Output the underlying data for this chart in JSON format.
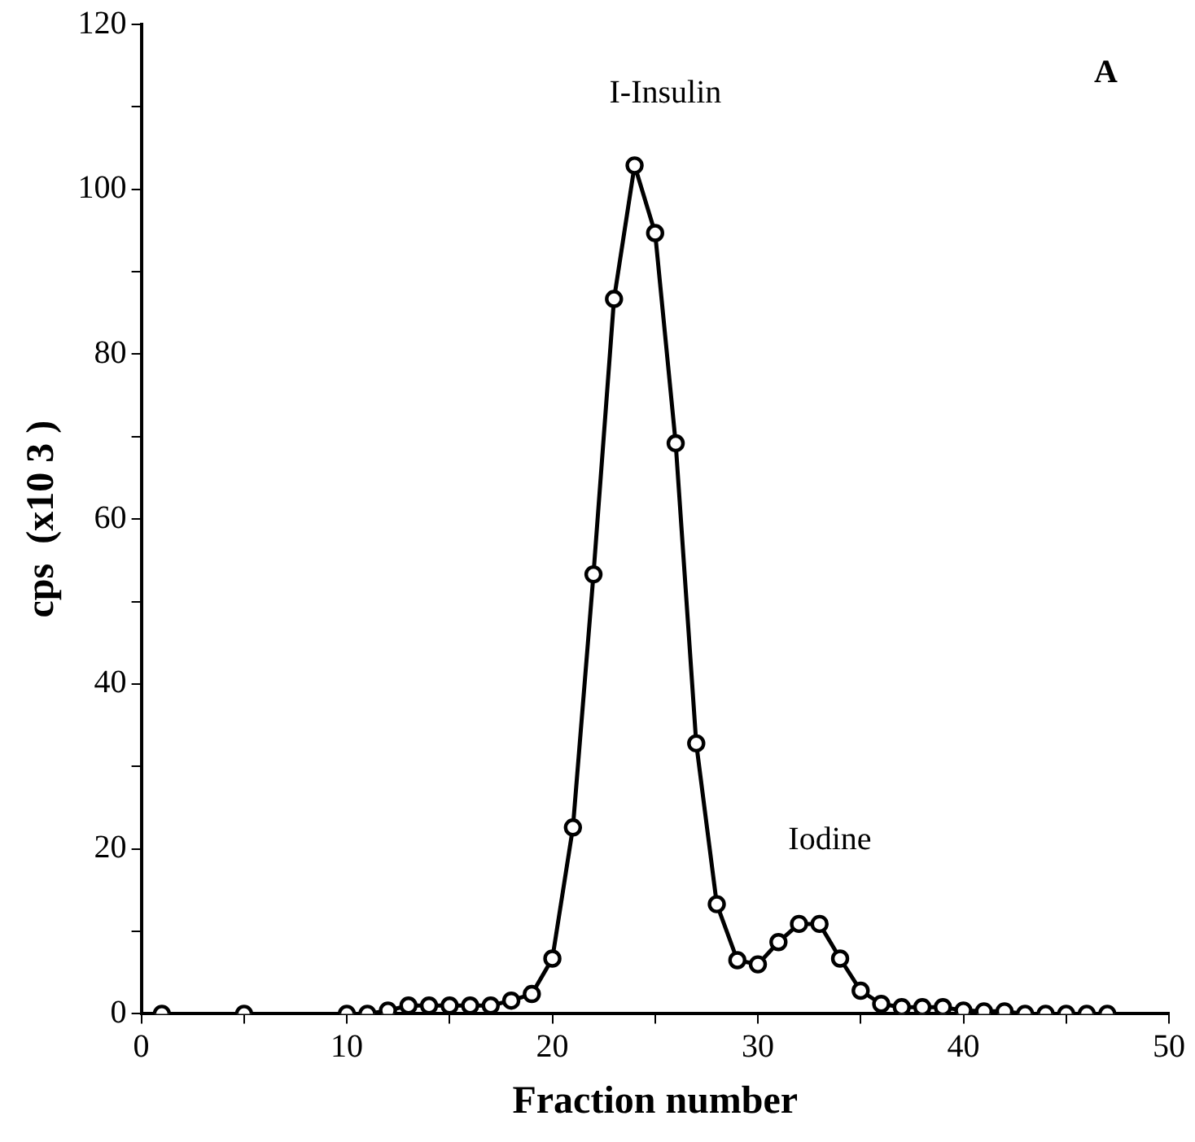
{
  "chart_data": {
    "type": "line",
    "xlabel": "Fraction number",
    "ylabel": "cps  (x10 3 )",
    "x": [
      1,
      5,
      10,
      11,
      12,
      13,
      14,
      15,
      16,
      17,
      18,
      19,
      20,
      21,
      22,
      23,
      24,
      25,
      26,
      27,
      28,
      29,
      30,
      31,
      32,
      33,
      34,
      35,
      36,
      37,
      38,
      39,
      40,
      41,
      42,
      43,
      44,
      45,
      46,
      47
    ],
    "series": [
      {
        "color": "#000000",
        "values": [
          0,
          0,
          0,
          0,
          0.4,
          1,
          1,
          1,
          1,
          1,
          1.6,
          2.4,
          6.7,
          22.6,
          53.3,
          86.7,
          102.9,
          94.7,
          69.2,
          32.8,
          13.3,
          6.5,
          6,
          8.7,
          10.9,
          10.9,
          6.7,
          2.8,
          1.2,
          0.8,
          0.8,
          0.8,
          0.4,
          0.3,
          0.3,
          0,
          0,
          0,
          0,
          0
        ]
      }
    ],
    "xlim": [
      0,
      50
    ],
    "xticks": [
      0,
      {
        "value": 5,
        "label": null
      },
      10,
      {
        "value": 15,
        "label": null
      },
      20,
      {
        "value": 25,
        "label": null
      },
      30,
      {
        "value": 35,
        "label": null
      },
      40,
      {
        "value": 45,
        "label": null
      },
      50
    ],
    "ylim": [
      0,
      120
    ],
    "yticks": [
      0,
      {
        "value": 10,
        "label": null
      },
      20,
      {
        "value": 30,
        "label": null
      },
      40,
      {
        "value": 50,
        "label": null
      },
      60,
      {
        "value": 70,
        "label": null
      },
      80,
      {
        "value": 90,
        "label": null
      },
      100,
      {
        "value": 110,
        "label": null
      },
      120
    ],
    "marker": "circle",
    "grid": false,
    "legend": false,
    "annotations": [
      "A",
      "I-Insulin",
      "Iodine"
    ]
  }
}
